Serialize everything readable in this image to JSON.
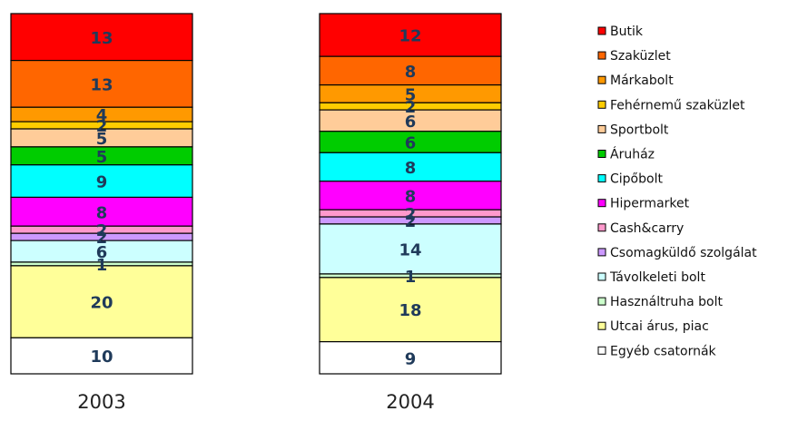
{
  "chart_data": {
    "type": "bar",
    "stacked": true,
    "normalized": true,
    "categories": [
      "2003",
      "2004"
    ],
    "series": [
      {
        "name": "Butik",
        "color": "#ff0000",
        "values": [
          13,
          12
        ]
      },
      {
        "name": "Szaküzlet",
        "color": "#ff6600",
        "values": [
          13,
          8
        ]
      },
      {
        "name": "Márkabolt",
        "color": "#ff9900",
        "values": [
          4,
          5
        ]
      },
      {
        "name": "Fehérnemű szaküzlet",
        "color": "#ffcc00",
        "values": [
          2,
          2
        ]
      },
      {
        "name": "Sportbolt",
        "color": "#ffcc99",
        "values": [
          5,
          6
        ]
      },
      {
        "name": "Áruház",
        "color": "#00cc00",
        "values": [
          5,
          6
        ]
      },
      {
        "name": "Cipőbolt",
        "color": "#00ffff",
        "values": [
          9,
          8
        ]
      },
      {
        "name": "Hipermarket",
        "color": "#ff00ff",
        "values": [
          8,
          8
        ]
      },
      {
        "name": "Cash&carry",
        "color": "#ff99cc",
        "values": [
          2,
          2
        ]
      },
      {
        "name": "Csomagküldő szolgálat",
        "color": "#cc99ff",
        "values": [
          2,
          2
        ]
      },
      {
        "name": "Távolkeleti bolt",
        "color": "#ccffff",
        "values": [
          6,
          14
        ]
      },
      {
        "name": "Használtruha bolt",
        "color": "#ccffcc",
        "values": [
          1,
          1
        ]
      },
      {
        "name": "Utcai árus, piac",
        "color": "#ffff99",
        "values": [
          20,
          18
        ]
      },
      {
        "name": "Egyéb csatornák",
        "color": "#ffffff",
        "values": [
          10,
          9
        ]
      }
    ],
    "legend_position": "right",
    "grid": false
  }
}
